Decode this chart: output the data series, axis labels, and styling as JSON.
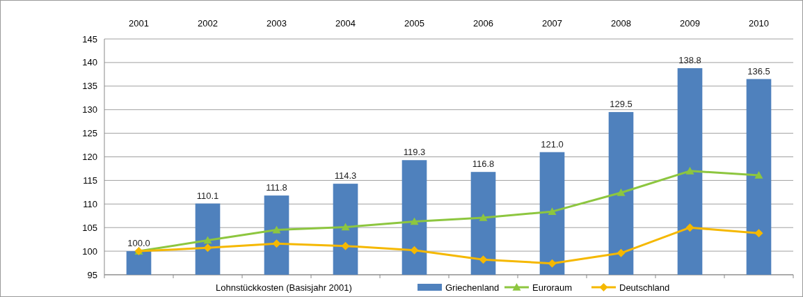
{
  "chart_data": {
    "type": "bar",
    "title": "Lohnstückkosten (Basisjahr 2001)",
    "categories": [
      "2001",
      "2002",
      "2003",
      "2004",
      "2005",
      "2006",
      "2007",
      "2008",
      "2009",
      "2010"
    ],
    "series": [
      {
        "name": "Griechenland",
        "color": "#4f81bd",
        "values": [
          100.0,
          110.1,
          111.8,
          114.3,
          119.3,
          116.8,
          121.0,
          129.5,
          138.8,
          136.5
        ],
        "value_labels": [
          "100.0",
          "110.1",
          "111.8",
          "114.3",
          "119.3",
          "116.8",
          "121.0",
          "129.5",
          "138.8",
          "136.5"
        ]
      },
      {
        "name": "Euroraum",
        "type": "line",
        "color": "#8dc63f",
        "marker": "triangle",
        "values": [
          100,
          102.3,
          104.5,
          105.1,
          106.3,
          107.1,
          108.4,
          112.4,
          117.0,
          116.1
        ]
      },
      {
        "name": "Deutschland",
        "type": "line",
        "color": "#f5b800",
        "marker": "diamond",
        "values": [
          100,
          100.7,
          101.6,
          101.1,
          100.2,
          98.2,
          97.4,
          99.6,
          105.0,
          103.8
        ]
      }
    ],
    "ylim": [
      95,
      145
    ],
    "yticks": [
      95,
      100,
      105,
      110,
      115,
      120,
      125,
      130,
      135,
      140,
      145
    ],
    "grid": "y",
    "legend": "bottom"
  }
}
